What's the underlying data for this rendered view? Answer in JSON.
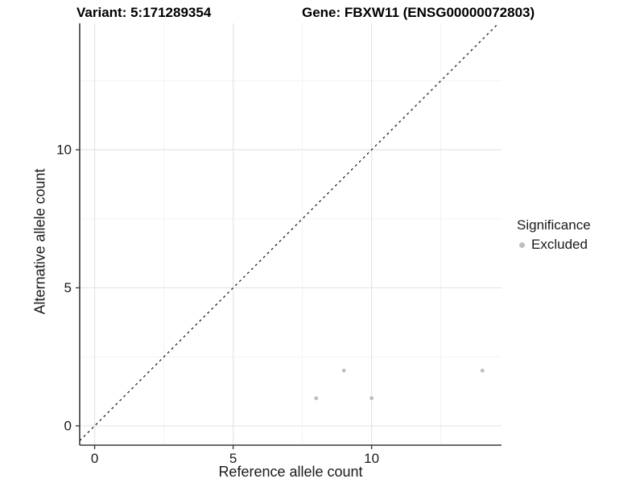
{
  "header": {
    "variant_title": "Variant: 5:171289354",
    "gene_title": "Gene: FBXW11 (ENSG00000072803)"
  },
  "legend": {
    "title": "Significance",
    "items": [
      {
        "label": "Excluded",
        "color": "#bebebe"
      }
    ]
  },
  "chart_data": {
    "type": "scatter",
    "title": "Variant: 5:171289354 / Gene: FBXW11 (ENSG00000072803)",
    "xlabel": "Reference allele count",
    "ylabel": "Alternative allele count",
    "xlim": [
      -0.54,
      14.69
    ],
    "ylim": [
      -0.7,
      14.58
    ],
    "x_ticks": [
      0,
      5,
      10
    ],
    "y_ticks": [
      0,
      5,
      10
    ],
    "x_minor_ticks": [
      2.5,
      7.5,
      12.5
    ],
    "y_minor_ticks": [
      2.5,
      7.5,
      12.5
    ],
    "grid": true,
    "legend_position": "right",
    "series": [
      {
        "name": "Excluded",
        "color": "#bebebe",
        "points": [
          [
            8,
            1
          ],
          [
            9,
            2
          ],
          [
            10,
            1
          ],
          [
            14,
            2
          ]
        ]
      }
    ],
    "reference_line": {
      "type": "identity",
      "slope": 1,
      "intercept": 0,
      "style": "dashed",
      "color": "#222222"
    }
  },
  "style": {
    "grid_major": "#e6e6e6",
    "grid_minor": "#f2f2f2",
    "axis_line": "#3a3a3a",
    "tick_label": "#1a1a1a",
    "point_color": "#bebebe"
  }
}
